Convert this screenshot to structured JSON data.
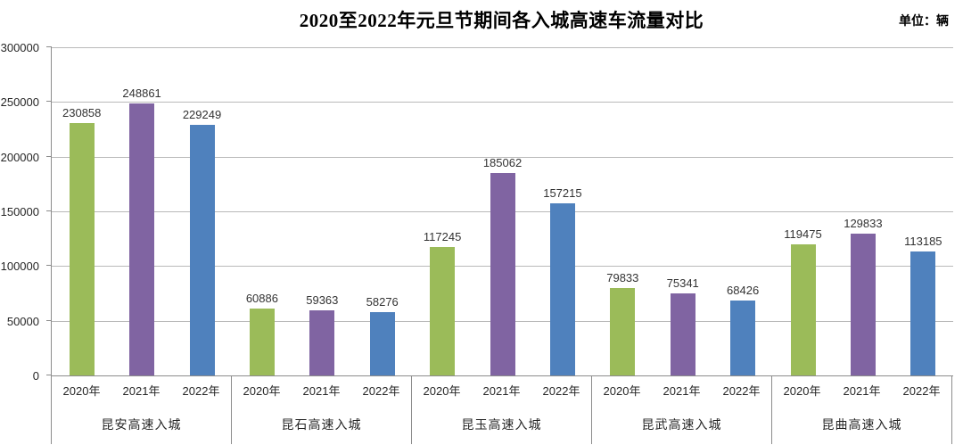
{
  "title": "2020至2022年元旦节期间各入城高速车流量对比",
  "unit_label": "单位：辆",
  "colors": {
    "grid": "#b9b9b9",
    "axis": "#8c8c8c",
    "background": "#ffffff"
  },
  "chart_data": {
    "type": "bar",
    "title": "2020至2022年元旦节期间各入城高速车流量对比",
    "unit": "单位：辆",
    "categories": [
      "昆安高速入城",
      "昆石高速入城",
      "昆玉高速入城",
      "昆武高速入城",
      "昆曲高速入城"
    ],
    "series": [
      {
        "name": "2020年",
        "color": "#9BBB59",
        "values": [
          230858,
          60886,
          117245,
          79833,
          119475
        ]
      },
      {
        "name": "2021年",
        "color": "#8064A2",
        "values": [
          248861,
          59363,
          185062,
          75341,
          129833
        ]
      },
      {
        "name": "2022年",
        "color": "#4F81BD",
        "values": [
          229249,
          58276,
          157215,
          68426,
          113185
        ]
      }
    ],
    "data_labels": true,
    "xlabel": "",
    "ylabel": "",
    "ylim": [
      0,
      300000
    ],
    "yticks": [
      0,
      50000,
      100000,
      150000,
      200000,
      250000,
      300000
    ],
    "grid": true,
    "legend_position": "none"
  }
}
